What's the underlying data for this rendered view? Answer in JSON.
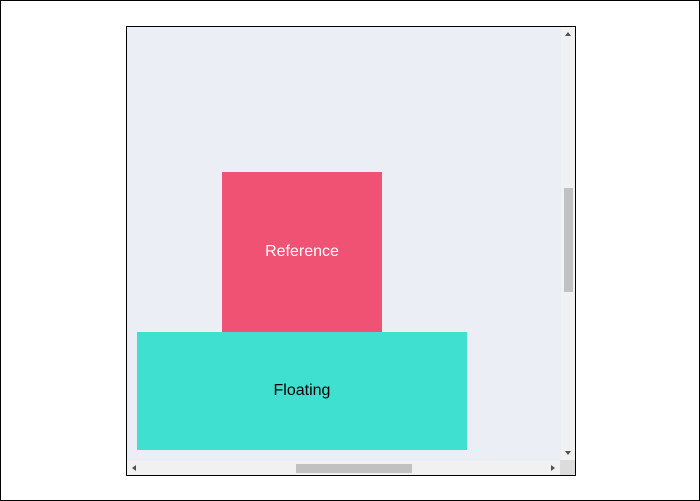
{
  "reference": {
    "label": "Reference",
    "color": "#ef5273"
  },
  "floating": {
    "label": "Floating",
    "color": "#40e0d0"
  },
  "container": {
    "background": "#ebeef5"
  },
  "scrollbars": {
    "icons": [
      "scroll-up-arrow-icon",
      "scroll-down-arrow-icon",
      "scroll-left-arrow-icon",
      "scroll-right-arrow-icon"
    ]
  }
}
